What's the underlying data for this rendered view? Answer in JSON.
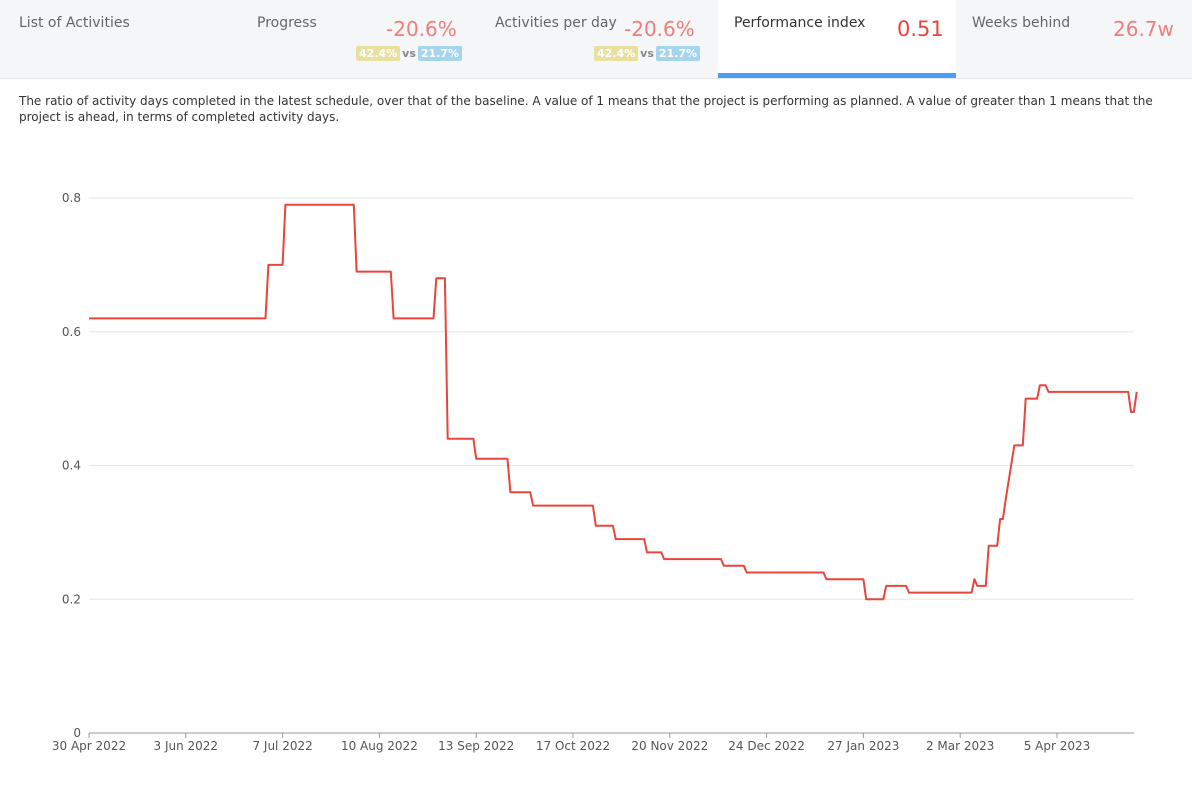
{
  "tabs": [
    {
      "label": "List of Activities"
    },
    {
      "label": "Progress",
      "value": "-20.6%",
      "compare_left": "42.4%",
      "vs": "vs",
      "compare_right": "21.7%"
    },
    {
      "label": "Activities per day",
      "value": "-20.6%",
      "compare_left": "42.4%",
      "vs": "vs",
      "compare_right": "21.7%"
    },
    {
      "label": "Performance index",
      "value": "0.51",
      "active": true
    },
    {
      "label": "Weeks behind",
      "value": "26.7w"
    }
  ],
  "description": "The ratio of activity days completed in the latest schedule, over that of the baseline. A value of 1 means that the project is performing as planned. A value of greater than 1 means that the project is ahead, in terms of completed activity days.",
  "colors": {
    "line": "#e8453c",
    "accent": "#4a9ff5",
    "value": "#ef7d7d",
    "badge_yellow": "#e8e0a0",
    "badge_blue": "#a5d4ee"
  },
  "chart_data": {
    "type": "line",
    "title": "",
    "xlabel": "",
    "ylabel": "",
    "ylim": [
      0,
      0.8
    ],
    "y_ticks": [
      "0",
      "0.2",
      "0.4",
      "0.6",
      "0.8"
    ],
    "x_ticks": [
      "30 Apr 2022",
      "3 Jun 2022",
      "7 Jul 2022",
      "10 Aug 2022",
      "13 Sep 2022",
      "17 Oct 2022",
      "20 Nov 2022",
      "24 Dec 2022",
      "27 Jan 2023",
      "2 Mar 2023",
      "5 Apr 2023"
    ],
    "grid": true,
    "series": [
      {
        "x": [
          "2022-04-30",
          "2022-07-01",
          "2022-07-02",
          "2022-07-07",
          "2022-07-08",
          "2022-08-01",
          "2022-08-02",
          "2022-08-14",
          "2022-08-15",
          "2022-08-29",
          "2022-08-30",
          "2022-09-02",
          "2022-09-03",
          "2022-09-12",
          "2022-09-13",
          "2022-09-24",
          "2022-09-25",
          "2022-10-02",
          "2022-10-03",
          "2022-10-24",
          "2022-10-25",
          "2022-10-31",
          "2022-11-01",
          "2022-11-11",
          "2022-11-12",
          "2022-11-17",
          "2022-11-18",
          "2022-12-08",
          "2022-12-09",
          "2022-12-16",
          "2022-12-17",
          "2023-01-13",
          "2023-01-14",
          "2023-01-27",
          "2023-01-28",
          "2023-02-03",
          "2023-02-04",
          "2023-02-11",
          "2023-02-12",
          "2023-03-06",
          "2023-03-07",
          "2023-03-08",
          "2023-03-11",
          "2023-03-12",
          "2023-03-15",
          "2023-03-16",
          "2023-03-17",
          "2023-03-18",
          "2023-03-21",
          "2023-03-24",
          "2023-03-25",
          "2023-03-29",
          "2023-03-30",
          "2023-04-01",
          "2023-04-02",
          "2023-04-30",
          "2023-05-01",
          "2023-05-02",
          "2023-05-03"
        ],
        "values": [
          0.62,
          0.62,
          0.7,
          0.7,
          0.79,
          0.79,
          0.69,
          0.69,
          0.62,
          0.62,
          0.68,
          0.68,
          0.44,
          0.44,
          0.41,
          0.41,
          0.36,
          0.36,
          0.34,
          0.34,
          0.31,
          0.31,
          0.29,
          0.29,
          0.27,
          0.27,
          0.26,
          0.26,
          0.25,
          0.25,
          0.24,
          0.24,
          0.23,
          0.23,
          0.2,
          0.2,
          0.22,
          0.22,
          0.21,
          0.21,
          0.23,
          0.22,
          0.22,
          0.28,
          0.28,
          0.32,
          0.32,
          0.35,
          0.43,
          0.43,
          0.5,
          0.5,
          0.52,
          0.52,
          0.51,
          0.51,
          0.48,
          0.48,
          0.51
        ]
      }
    ]
  }
}
